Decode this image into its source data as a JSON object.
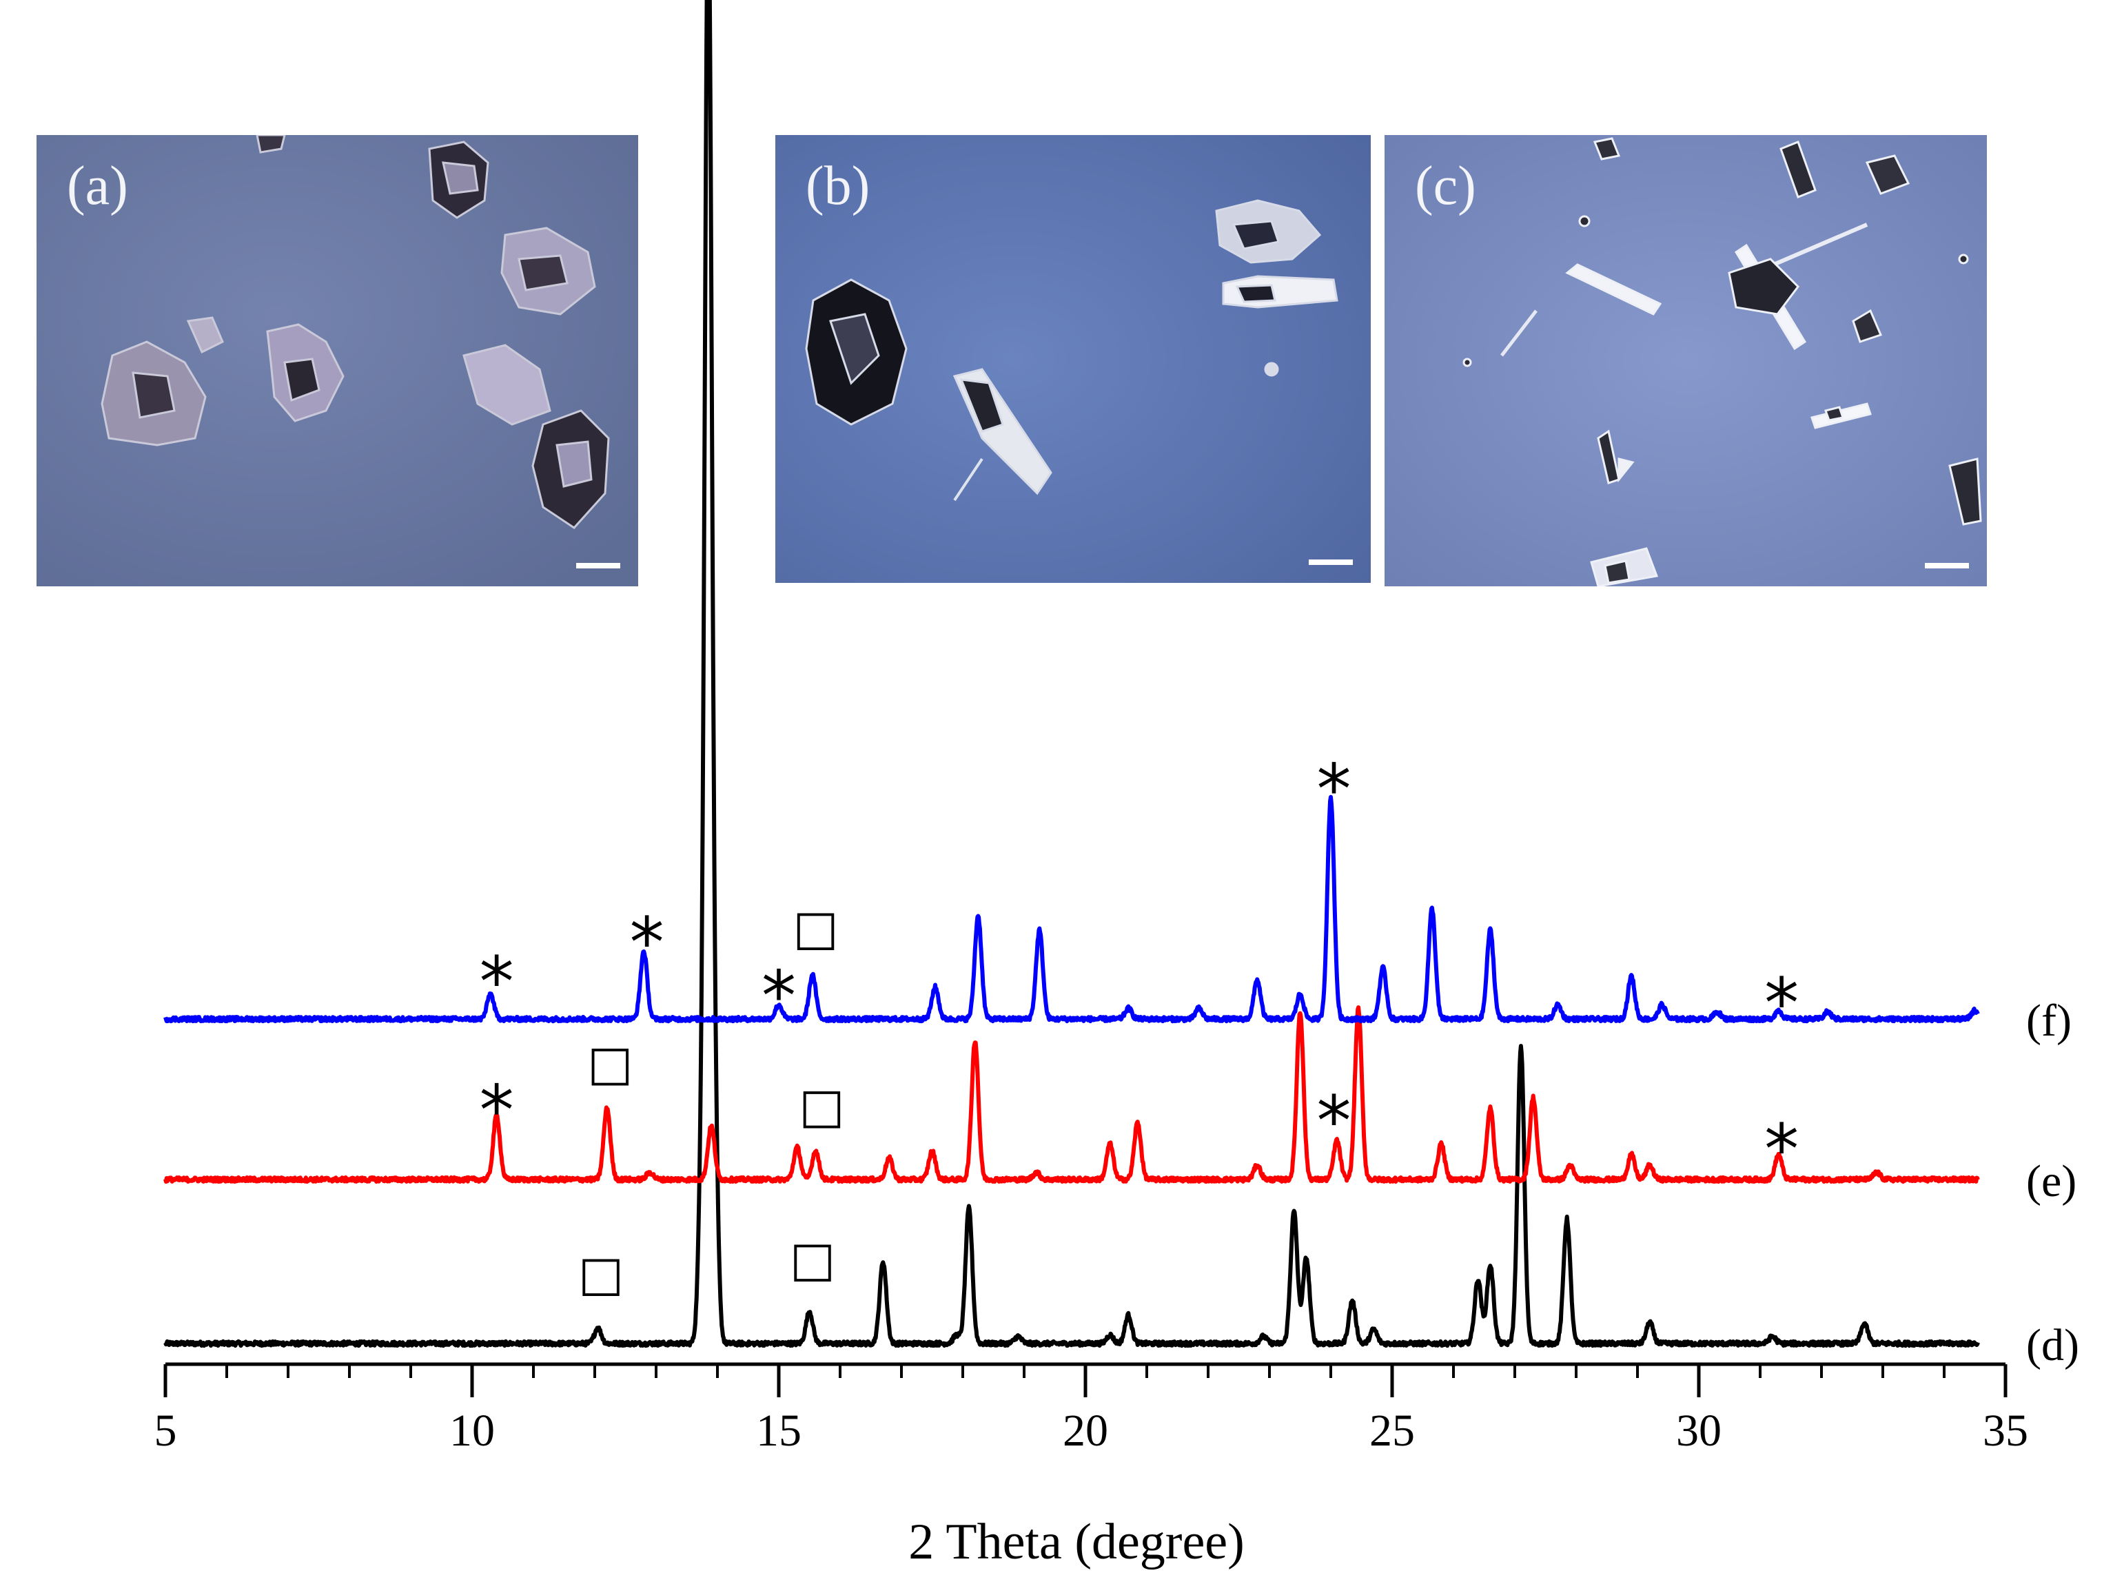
{
  "chart_data": {
    "type": "line",
    "xlabel": "2 Theta (degree)",
    "ylabel": "",
    "xlim": [
      5,
      35
    ],
    "x_ticks": [
      5,
      10,
      15,
      20,
      25,
      30,
      35
    ],
    "grid": false,
    "series": [
      {
        "name": "(d)",
        "color": "#000000",
        "baseline": 0,
        "peaks": [
          [
            12.05,
            0.22
          ],
          [
            13.75,
            2.3
          ],
          [
            13.85,
            19.5
          ],
          [
            13.95,
            3.0
          ],
          [
            15.5,
            0.45
          ],
          [
            16.7,
            1.15
          ],
          [
            17.9,
            0.12
          ],
          [
            18.1,
            1.9
          ],
          [
            18.9,
            0.1
          ],
          [
            20.4,
            0.12
          ],
          [
            20.7,
            0.4
          ],
          [
            22.9,
            0.1
          ],
          [
            23.4,
            1.85
          ],
          [
            23.6,
            1.2
          ],
          [
            24.35,
            0.6
          ],
          [
            24.7,
            0.2
          ],
          [
            26.4,
            0.9
          ],
          [
            26.6,
            1.1
          ],
          [
            27.1,
            4.15
          ],
          [
            27.85,
            1.75
          ],
          [
            29.2,
            0.3
          ],
          [
            31.2,
            0.1
          ],
          [
            32.7,
            0.28
          ]
        ]
      },
      {
        "name": "(e)",
        "color": "#ff0000",
        "baseline": 2.3,
        "peaks": [
          [
            10.4,
            0.9
          ],
          [
            12.2,
            1.0
          ],
          [
            12.9,
            0.1
          ],
          [
            13.9,
            0.75
          ],
          [
            15.3,
            0.45
          ],
          [
            15.6,
            0.4
          ],
          [
            16.8,
            0.3
          ],
          [
            17.5,
            0.4
          ],
          [
            18.2,
            1.95
          ],
          [
            19.2,
            0.1
          ],
          [
            20.4,
            0.5
          ],
          [
            20.85,
            0.8
          ],
          [
            22.8,
            0.2
          ],
          [
            23.5,
            2.35
          ],
          [
            24.1,
            0.55
          ],
          [
            24.45,
            2.4
          ],
          [
            25.8,
            0.5
          ],
          [
            26.6,
            1.0
          ],
          [
            27.3,
            1.15
          ],
          [
            27.9,
            0.2
          ],
          [
            28.9,
            0.35
          ],
          [
            29.2,
            0.2
          ],
          [
            31.3,
            0.35
          ],
          [
            32.9,
            0.1
          ]
        ]
      },
      {
        "name": "(f)",
        "color": "#0000ff",
        "baseline": 4.55,
        "peaks": [
          [
            10.3,
            0.35
          ],
          [
            12.8,
            0.95
          ],
          [
            15.0,
            0.2
          ],
          [
            15.55,
            0.62
          ],
          [
            17.55,
            0.45
          ],
          [
            18.25,
            1.45
          ],
          [
            19.25,
            1.25
          ],
          [
            20.7,
            0.15
          ],
          [
            21.85,
            0.15
          ],
          [
            22.8,
            0.55
          ],
          [
            23.5,
            0.35
          ],
          [
            24.0,
            3.1
          ],
          [
            24.85,
            0.72
          ],
          [
            25.65,
            1.55
          ],
          [
            26.6,
            1.25
          ],
          [
            27.7,
            0.2
          ],
          [
            28.9,
            0.6
          ],
          [
            29.4,
            0.2
          ],
          [
            30.3,
            0.1
          ],
          [
            31.3,
            0.12
          ],
          [
            32.1,
            0.1
          ],
          [
            34.5,
            0.12
          ]
        ]
      }
    ],
    "annotations": [
      {
        "text": "□",
        "x": 13.9,
        "y": 19.9
      },
      {
        "text": "*",
        "x": 10.4,
        "y": 5.3
      },
      {
        "text": "*",
        "x": 12.85,
        "y": 5.85
      },
      {
        "text": "*",
        "x": 15.0,
        "y": 5.1
      },
      {
        "text": "□",
        "x": 15.6,
        "y": 5.6
      },
      {
        "text": "*",
        "x": 24.05,
        "y": 8.0
      },
      {
        "text": "*",
        "x": 31.35,
        "y": 5.0
      },
      {
        "text": "*",
        "x": 10.4,
        "y": 3.5
      },
      {
        "text": "□",
        "x": 12.25,
        "y": 3.7
      },
      {
        "text": "□",
        "x": 15.7,
        "y": 3.1
      },
      {
        "text": "*",
        "x": 24.05,
        "y": 3.35
      },
      {
        "text": "*",
        "x": 31.35,
        "y": 2.95
      },
      {
        "text": "□",
        "x": 12.1,
        "y": 0.75
      },
      {
        "text": "□",
        "x": 15.55,
        "y": 0.95
      }
    ]
  },
  "photos": [
    {
      "label": "(a)",
      "background": "#6a7aa3"
    },
    {
      "label": "(b)",
      "background": "#5f78b3"
    },
    {
      "label": "(c)",
      "background": "#7c8fc2"
    }
  ]
}
